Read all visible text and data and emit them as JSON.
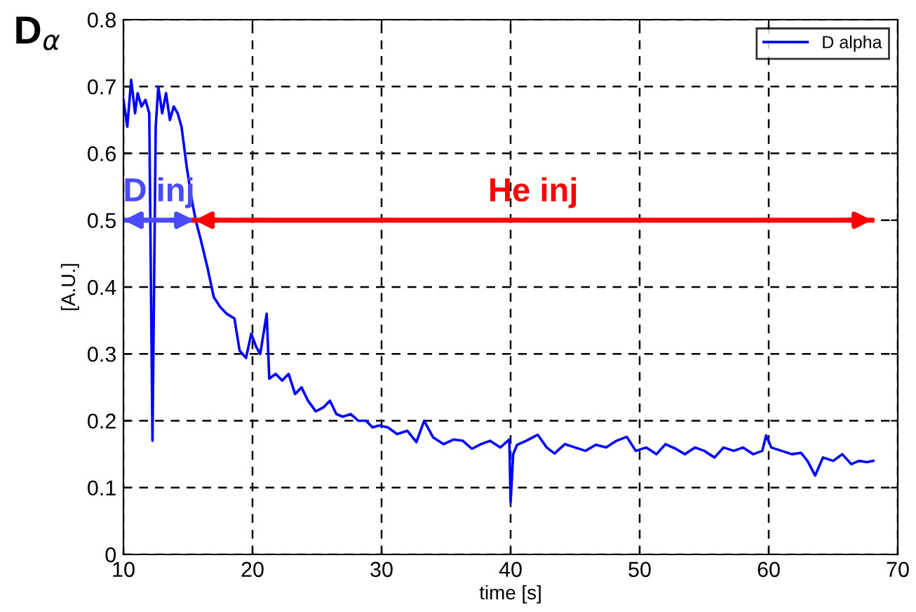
{
  "chart_data": {
    "type": "line",
    "title": "D$_{α}$",
    "xlabel": "time [s]",
    "ylabel": "[A.U.]",
    "x": [
      10,
      10.3,
      10.6,
      10.9,
      11.1,
      11.4,
      11.7,
      12.0,
      12.25,
      12.5,
      12.7,
      13.0,
      13.3,
      13.6,
      13.9,
      14.2,
      14.5,
      14.9,
      15.3,
      15.6,
      16.0,
      16.5,
      17.0,
      17.5,
      18.0,
      18.6,
      19.0,
      19.5,
      19.9,
      20.3,
      20.6,
      21.1,
      21.3,
      21.8,
      22.3,
      22.8,
      23.3,
      23.8,
      24.3,
      24.9,
      25.5,
      26.0,
      26.5,
      27.0,
      27.6,
      28.2,
      28.8,
      29.3,
      29.8,
      30.5,
      31.2,
      32.0,
      32.7,
      33.3,
      34.0,
      34.8,
      35.6,
      36.3,
      37.0,
      37.7,
      38.4,
      39.2,
      39.9,
      40.0,
      40.2,
      40.5,
      41.2,
      42.1,
      42.8,
      43.4,
      44.2,
      45.0,
      45.8,
      46.6,
      47.4,
      48.2,
      49.0,
      49.7,
      50.5,
      51.3,
      52.0,
      52.8,
      53.5,
      54.3,
      55.0,
      55.8,
      56.5,
      57.3,
      58.0,
      58.8,
      59.5,
      59.8,
      60.2,
      61.0,
      61.8,
      62.5,
      63.0,
      63.6,
      64.2,
      65.0,
      65.7,
      66.4,
      67.0,
      67.6,
      68.1
    ],
    "series": [
      {
        "name": "D alpha",
        "color": "#0000ff",
        "values": [
          0.68,
          0.64,
          0.71,
          0.66,
          0.69,
          0.67,
          0.68,
          0.66,
          0.17,
          0.64,
          0.7,
          0.66,
          0.69,
          0.65,
          0.67,
          0.66,
          0.64,
          0.58,
          0.53,
          0.5,
          0.47,
          0.43,
          0.385,
          0.37,
          0.36,
          0.353,
          0.305,
          0.294,
          0.33,
          0.31,
          0.3,
          0.36,
          0.263,
          0.27,
          0.26,
          0.27,
          0.24,
          0.25,
          0.23,
          0.214,
          0.22,
          0.23,
          0.21,
          0.206,
          0.21,
          0.2,
          0.2,
          0.19,
          0.193,
          0.19,
          0.18,
          0.185,
          0.168,
          0.2,
          0.175,
          0.165,
          0.172,
          0.17,
          0.158,
          0.165,
          0.17,
          0.16,
          0.172,
          0.078,
          0.15,
          0.164,
          0.17,
          0.179,
          0.16,
          0.151,
          0.165,
          0.16,
          0.155,
          0.164,
          0.16,
          0.17,
          0.176,
          0.155,
          0.16,
          0.15,
          0.165,
          0.158,
          0.15,
          0.16,
          0.155,
          0.145,
          0.16,
          0.155,
          0.16,
          0.15,
          0.155,
          0.178,
          0.16,
          0.155,
          0.15,
          0.152,
          0.14,
          0.118,
          0.145,
          0.14,
          0.15,
          0.135,
          0.14,
          0.138,
          0.14
        ]
      },
      {
        "type": "line",
        "color": "#4a4aff",
        "x": [
          10,
          15.5
        ],
        "values": [
          0.5,
          0.5
        ]
      },
      {
        "type": "line",
        "color": "#ff0000",
        "x": [
          15.5,
          68
        ],
        "values": [
          0.5,
          0.5
        ]
      }
    ],
    "xlim": [
      10,
      70
    ],
    "ylim": [
      0,
      0.8
    ],
    "xticks": [
      10,
      20,
      30,
      40,
      50,
      60,
      70
    ],
    "yticks": [
      0,
      0.1,
      0.2,
      0.3,
      0.4,
      0.5,
      0.6,
      0.7,
      0.8
    ],
    "grid": true,
    "legend": "top right",
    "marker": "none",
    "line_style": "solid",
    "annotations": [
      "D inj",
      "He inj"
    ]
  }
}
